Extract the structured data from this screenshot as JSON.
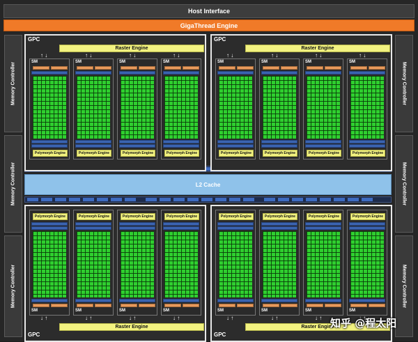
{
  "header": {
    "host_interface": "Host Interface",
    "gigathread": "GigaThread Engine"
  },
  "memory_controller": {
    "label": "Memory Controller"
  },
  "gpc": {
    "label": "GPC",
    "raster_engine": "Raster Engine",
    "sm_label": "SM",
    "polymorph_engine": "Polymorph Engine"
  },
  "l2": {
    "label": "L2 Cache"
  },
  "watermark": {
    "text": "知乎 @程太阳"
  },
  "colors": {
    "background": "#262626",
    "gigathread": "#f07a28",
    "raster": "#f2f280",
    "cores": "#2fcf2f",
    "l2": "#8fc2ea",
    "register_blue": "#3b64b0",
    "cache_orange": "#e89a5c"
  }
}
